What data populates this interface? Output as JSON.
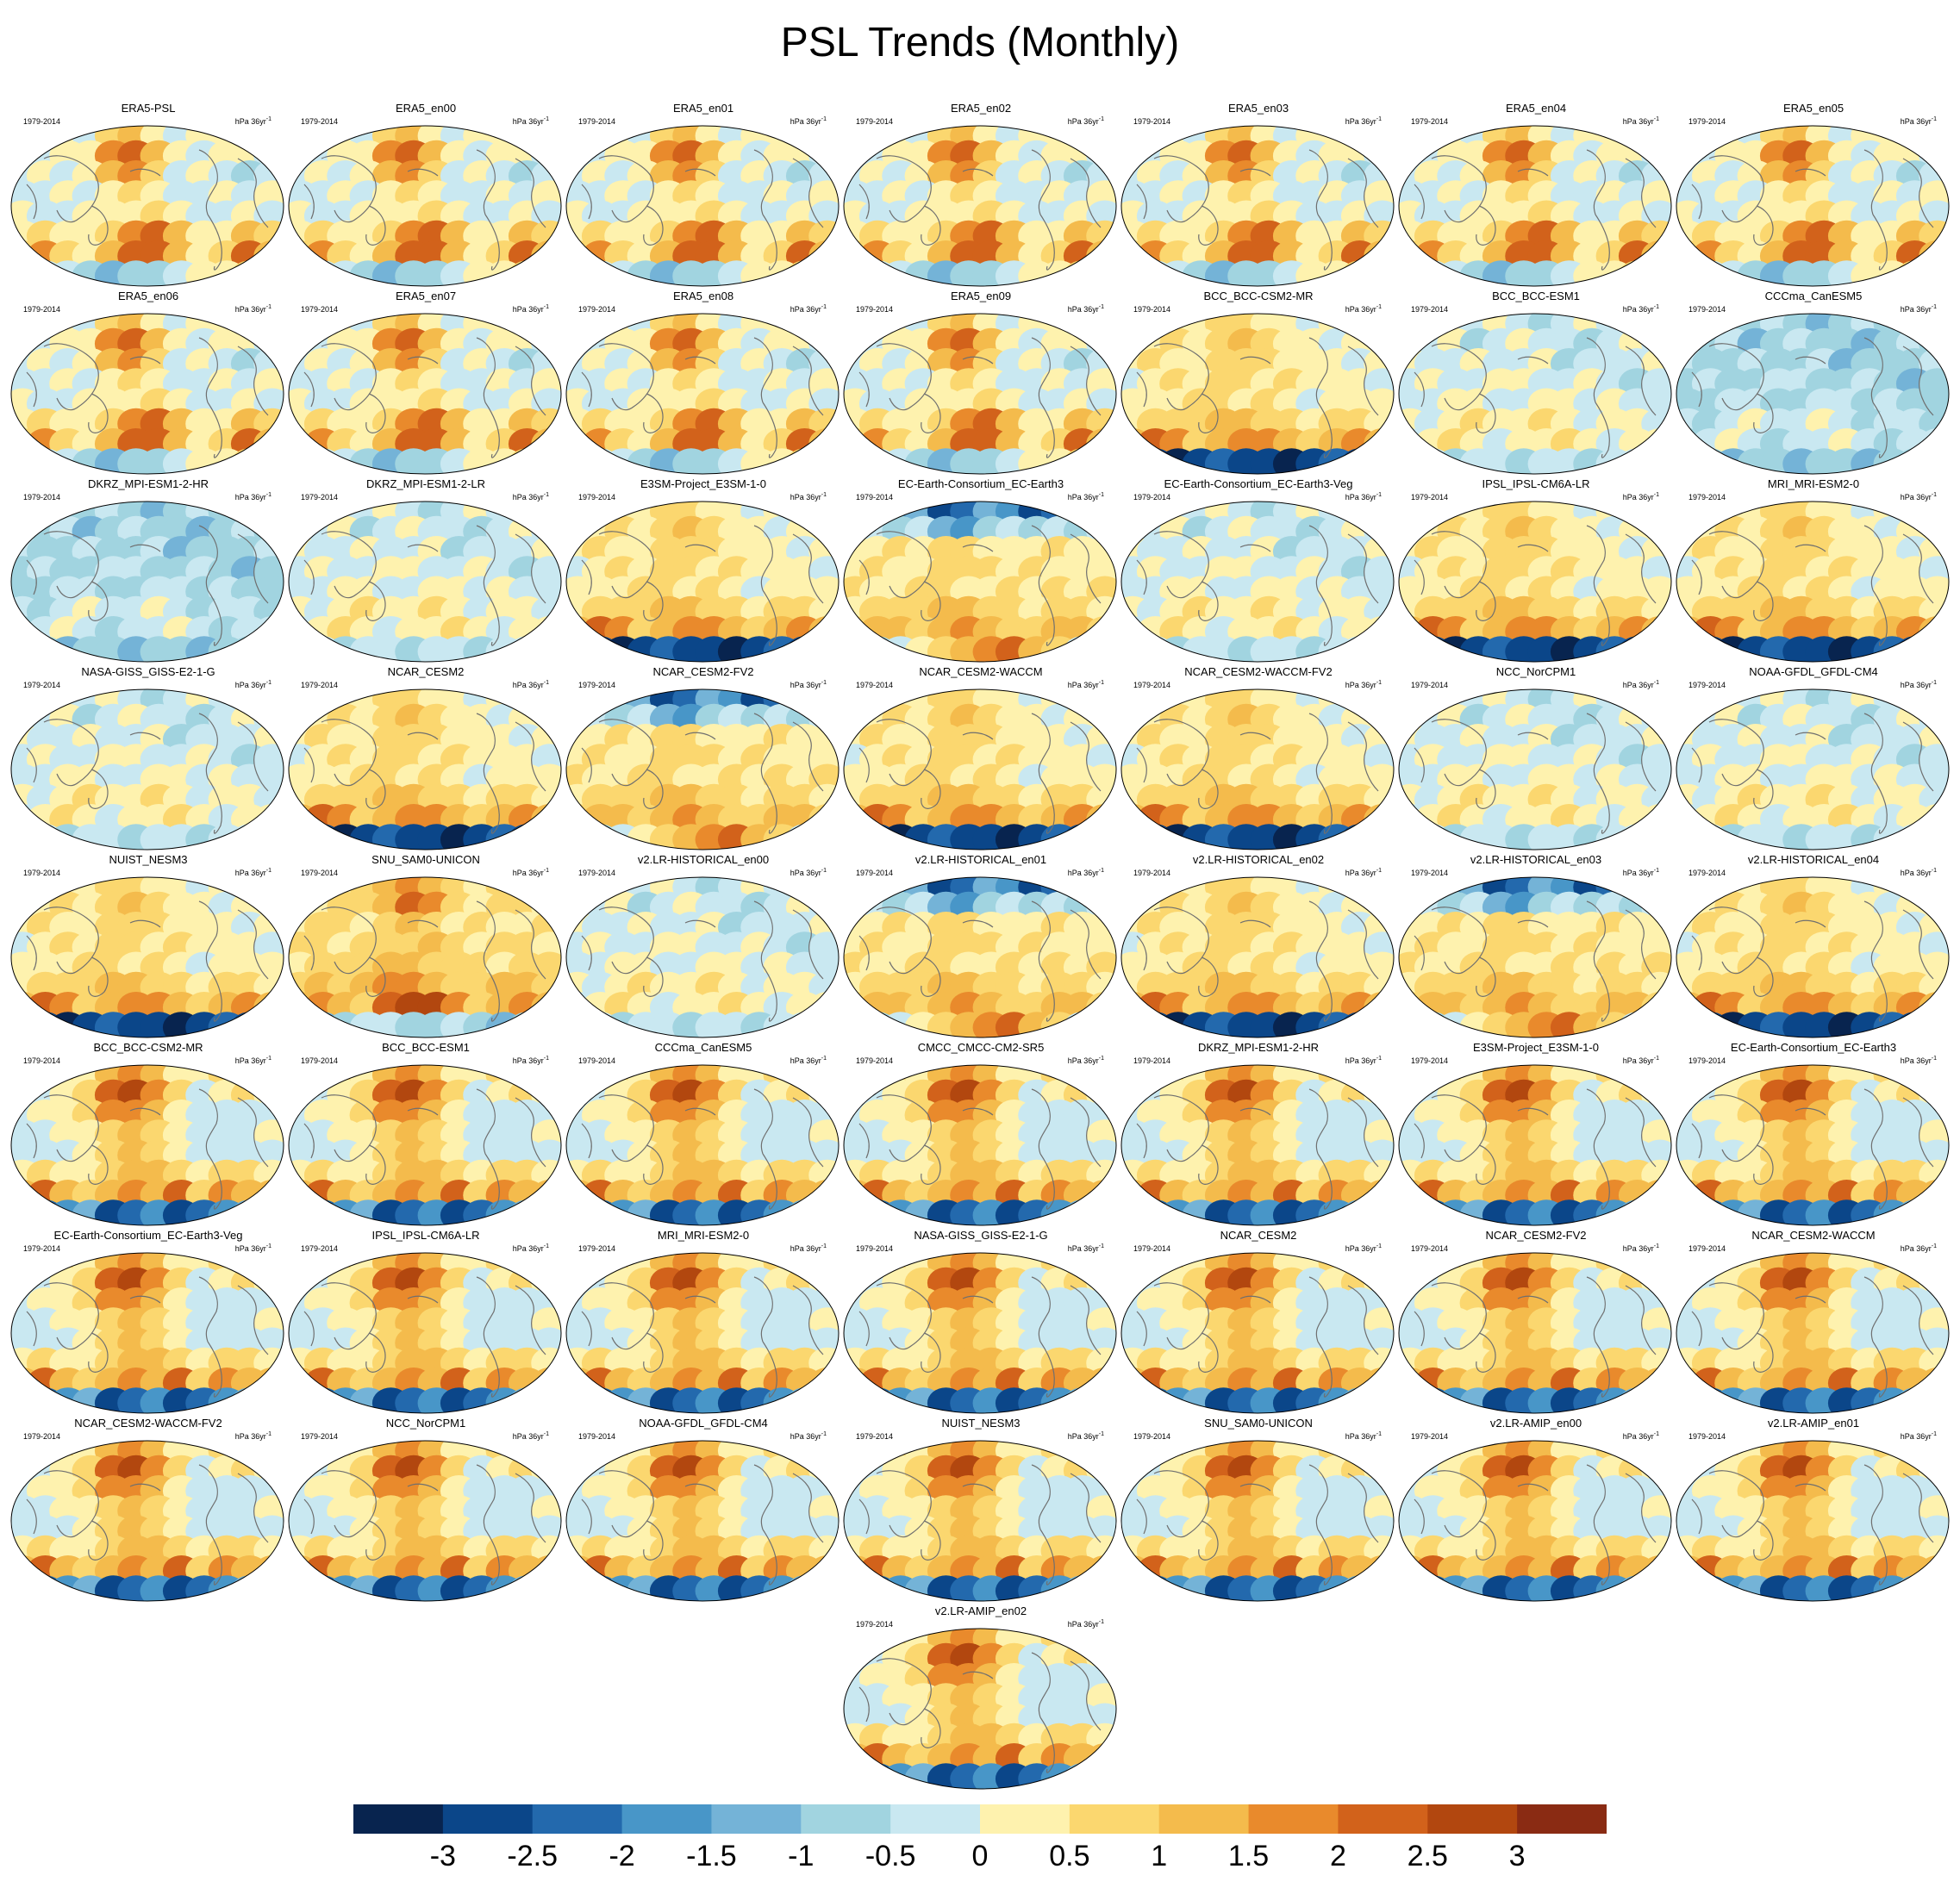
{
  "title": "PSL Trends (Monthly)",
  "period": "1979-2014",
  "units_base": "hPa 36yr",
  "units_exp": "-1",
  "panels": [
    {
      "name": "ERA5-PSL",
      "pattern": "era"
    },
    {
      "name": "ERA5_en00",
      "pattern": "era"
    },
    {
      "name": "ERA5_en01",
      "pattern": "era"
    },
    {
      "name": "ERA5_en02",
      "pattern": "era"
    },
    {
      "name": "ERA5_en03",
      "pattern": "era"
    },
    {
      "name": "ERA5_en04",
      "pattern": "era"
    },
    {
      "name": "ERA5_en05",
      "pattern": "era"
    },
    {
      "name": "ERA5_en06",
      "pattern": "era"
    },
    {
      "name": "ERA5_en07",
      "pattern": "era"
    },
    {
      "name": "ERA5_en08",
      "pattern": "era"
    },
    {
      "name": "ERA5_en09",
      "pattern": "era"
    },
    {
      "name": "BCC_BCC-CSM2-MR",
      "pattern": "southneg"
    },
    {
      "name": "BCC_BCC-ESM1",
      "pattern": "weak"
    },
    {
      "name": "CCCma_CanESM5",
      "pattern": "weakneg"
    },
    {
      "name": "DKRZ_MPI-ESM1-2-HR",
      "pattern": "weakneg"
    },
    {
      "name": "DKRZ_MPI-ESM1-2-LR",
      "pattern": "weak"
    },
    {
      "name": "E3SM-Project_E3SM-1-0",
      "pattern": "southneg"
    },
    {
      "name": "EC-Earth-Consortium_EC-Earth3",
      "pattern": "northneg"
    },
    {
      "name": "EC-Earth-Consortium_EC-Earth3-Veg",
      "pattern": "weak"
    },
    {
      "name": "IPSL_IPSL-CM6A-LR",
      "pattern": "southneg"
    },
    {
      "name": "MRI_MRI-ESM2-0",
      "pattern": "southneg"
    },
    {
      "name": "NASA-GISS_GISS-E2-1-G",
      "pattern": "weak"
    },
    {
      "name": "NCAR_CESM2",
      "pattern": "southneg"
    },
    {
      "name": "NCAR_CESM2-FV2",
      "pattern": "northneg"
    },
    {
      "name": "NCAR_CESM2-WACCM",
      "pattern": "southneg"
    },
    {
      "name": "NCAR_CESM2-WACCM-FV2",
      "pattern": "southneg"
    },
    {
      "name": "NCC_NorCPM1",
      "pattern": "weak"
    },
    {
      "name": "NOAA-GFDL_GFDL-CM4",
      "pattern": "weak"
    },
    {
      "name": "NUIST_NESM3",
      "pattern": "southneg"
    },
    {
      "name": "SNU_SAM0-UNICON",
      "pattern": "warm"
    },
    {
      "name": "v2.LR-HISTORICAL_en00",
      "pattern": "weak"
    },
    {
      "name": "v2.LR-HISTORICAL_en01",
      "pattern": "northneg"
    },
    {
      "name": "v2.LR-HISTORICAL_en02",
      "pattern": "southneg"
    },
    {
      "name": "v2.LR-HISTORICAL_en03",
      "pattern": "northneg"
    },
    {
      "name": "v2.LR-HISTORICAL_en04",
      "pattern": "southneg"
    },
    {
      "name": "BCC_BCC-CSM2-MR",
      "pattern": "amip"
    },
    {
      "name": "BCC_BCC-ESM1",
      "pattern": "amip"
    },
    {
      "name": "CCCma_CanESM5",
      "pattern": "amip"
    },
    {
      "name": "CMCC_CMCC-CM2-SR5",
      "pattern": "amip"
    },
    {
      "name": "DKRZ_MPI-ESM1-2-HR",
      "pattern": "amip"
    },
    {
      "name": "E3SM-Project_E3SM-1-0",
      "pattern": "amip"
    },
    {
      "name": "EC-Earth-Consortium_EC-Earth3",
      "pattern": "amip"
    },
    {
      "name": "EC-Earth-Consortium_EC-Earth3-Veg",
      "pattern": "amip"
    },
    {
      "name": "IPSL_IPSL-CM6A-LR",
      "pattern": "amip"
    },
    {
      "name": "MRI_MRI-ESM2-0",
      "pattern": "amip"
    },
    {
      "name": "NASA-GISS_GISS-E2-1-G",
      "pattern": "amip"
    },
    {
      "name": "NCAR_CESM2",
      "pattern": "amip"
    },
    {
      "name": "NCAR_CESM2-FV2",
      "pattern": "amip"
    },
    {
      "name": "NCAR_CESM2-WACCM",
      "pattern": "amip"
    },
    {
      "name": "NCAR_CESM2-WACCM-FV2",
      "pattern": "amip"
    },
    {
      "name": "NCC_NorCPM1",
      "pattern": "amip"
    },
    {
      "name": "NOAA-GFDL_GFDL-CM4",
      "pattern": "amip"
    },
    {
      "name": "NUIST_NESM3",
      "pattern": "amip"
    },
    {
      "name": "SNU_SAM0-UNICON",
      "pattern": "amip"
    },
    {
      "name": "v2.LR-AMIP_en00",
      "pattern": "amip"
    },
    {
      "name": "v2.LR-AMIP_en01",
      "pattern": "amip"
    },
    {
      "name": "v2.LR-AMIP_en02",
      "pattern": "amip"
    }
  ],
  "colorbar": {
    "colors": [
      "#08244f",
      "#0b4689",
      "#2369ad",
      "#4896c8",
      "#74b3d7",
      "#a1d4e0",
      "#c9e8f1",
      "#fef2ae",
      "#fbd76f",
      "#f4bb4c",
      "#e98a2c",
      "#d2621b",
      "#b2470f",
      "#8a2b13"
    ],
    "labels": [
      "-3",
      "-2.5",
      "-2",
      "-1.5",
      "-1",
      "-0.5",
      "0",
      "0.5",
      "1",
      "1.5",
      "2",
      "2.5",
      "3"
    ],
    "min": -3.5,
    "max": 3.5,
    "step": 0.5
  }
}
